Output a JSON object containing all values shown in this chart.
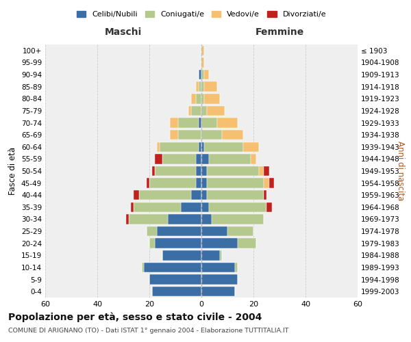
{
  "age_groups": [
    "0-4",
    "5-9",
    "10-14",
    "15-19",
    "20-24",
    "25-29",
    "30-34",
    "35-39",
    "40-44",
    "45-49",
    "50-54",
    "55-59",
    "60-64",
    "65-69",
    "70-74",
    "75-79",
    "80-84",
    "85-89",
    "90-94",
    "95-99",
    "100+"
  ],
  "birth_years": [
    "1999-2003",
    "1994-1998",
    "1989-1993",
    "1984-1988",
    "1979-1983",
    "1974-1978",
    "1969-1973",
    "1964-1968",
    "1959-1963",
    "1954-1958",
    "1949-1953",
    "1944-1948",
    "1939-1943",
    "1934-1938",
    "1929-1933",
    "1924-1928",
    "1919-1923",
    "1914-1918",
    "1909-1913",
    "1904-1908",
    "≤ 1903"
  ],
  "males": {
    "celibi": [
      19,
      20,
      22,
      15,
      18,
      17,
      13,
      8,
      4,
      2,
      2,
      2,
      1,
      0,
      1,
      0,
      0,
      0,
      1,
      0,
      0
    ],
    "coniugati": [
      0,
      0,
      1,
      0,
      2,
      4,
      15,
      18,
      20,
      18,
      16,
      13,
      15,
      9,
      8,
      4,
      2,
      1,
      0,
      0,
      0
    ],
    "vedovi": [
      0,
      0,
      0,
      0,
      0,
      0,
      0,
      0,
      0,
      0,
      0,
      0,
      1,
      3,
      3,
      1,
      2,
      1,
      0,
      0,
      0
    ],
    "divorziati": [
      0,
      0,
      0,
      0,
      0,
      0,
      1,
      1,
      2,
      1,
      1,
      3,
      0,
      0,
      0,
      0,
      0,
      0,
      0,
      0,
      0
    ]
  },
  "females": {
    "nubili": [
      13,
      14,
      13,
      7,
      14,
      10,
      4,
      3,
      2,
      2,
      2,
      3,
      1,
      0,
      0,
      0,
      0,
      0,
      0,
      0,
      0
    ],
    "coniugate": [
      0,
      0,
      1,
      1,
      7,
      10,
      20,
      22,
      22,
      22,
      20,
      16,
      15,
      8,
      6,
      2,
      1,
      1,
      1,
      0,
      0
    ],
    "vedove": [
      0,
      0,
      0,
      0,
      0,
      0,
      0,
      0,
      0,
      2,
      2,
      2,
      6,
      8,
      8,
      7,
      6,
      5,
      2,
      1,
      1
    ],
    "divorziate": [
      0,
      0,
      0,
      0,
      0,
      0,
      0,
      2,
      1,
      2,
      2,
      0,
      0,
      0,
      0,
      0,
      0,
      0,
      0,
      0,
      0
    ]
  },
  "colors": {
    "celibi": "#3A6EA5",
    "coniugati": "#B5C98E",
    "vedovi": "#F5C072",
    "divorziati": "#C0201E"
  },
  "xlim": 60,
  "title": "Popolazione per età, sesso e stato civile - 2004",
  "subtitle": "COMUNE DI ARIGNANO (TO) - Dati ISTAT 1° gennaio 2004 - Elaborazione TUTTITALIA.IT",
  "xlabel_left": "Maschi",
  "xlabel_right": "Femmine",
  "ylabel_left": "Fasce di età",
  "ylabel_right": "Anni di nascita",
  "legend_labels": [
    "Celibi/Nubili",
    "Coniugati/e",
    "Vedovi/e",
    "Divorziati/e"
  ],
  "bg_color": "#ffffff",
  "plot_bg_color": "#efefef"
}
